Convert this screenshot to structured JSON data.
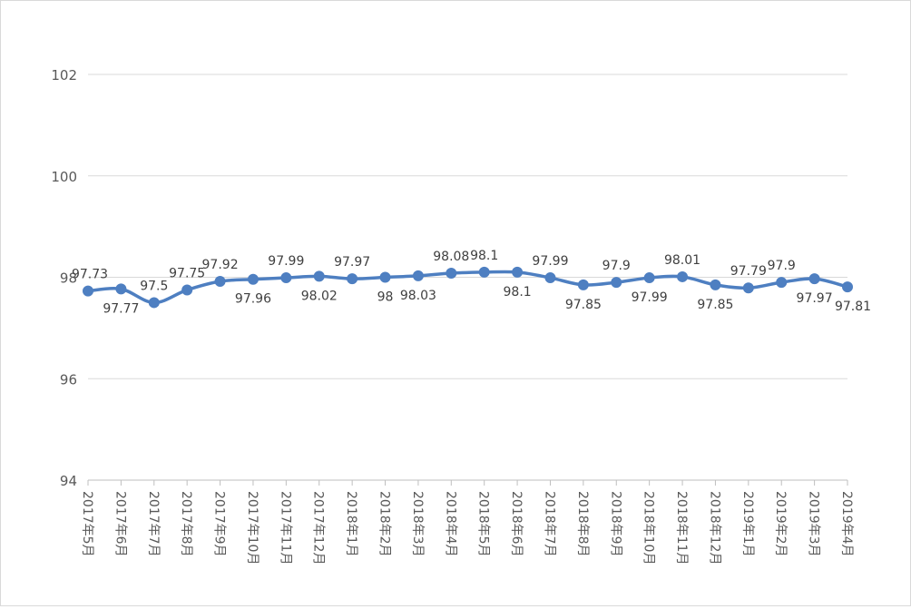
{
  "chart_data": {
    "type": "line",
    "title": "",
    "xlabel": "",
    "ylabel": "",
    "ylim": [
      94,
      102
    ],
    "yticks": [
      "94",
      "96",
      "98",
      "100",
      "102"
    ],
    "grid": true,
    "legend": "none",
    "line_color": "#4e7fc1",
    "categories": [
      "2017年5月",
      "2017年6月",
      "2017年7月",
      "2017年8月",
      "2017年9月",
      "2017年10月",
      "2017年11月",
      "2017年12月",
      "2018年1月",
      "2018年2月",
      "2018年3月",
      "2018年4月",
      "2018年5月",
      "2018年6月",
      "2018年7月",
      "2018年8月",
      "2018年9月",
      "2018年10月",
      "2018年11月",
      "2018年12月",
      "2019年1月",
      "2019年2月",
      "2019年3月",
      "2019年4月"
    ],
    "series": [
      {
        "values": [
          97.73,
          97.77,
          97.5,
          97.75,
          97.92,
          97.96,
          97.99,
          98.02,
          97.97,
          98,
          98.03,
          98.08,
          98.1,
          98.1,
          97.99,
          97.85,
          97.9,
          97.99,
          98.01,
          97.85,
          97.79,
          97.9,
          97.97,
          97.81
        ],
        "labels": [
          "97.73",
          "97.77",
          "97.5",
          "97.75",
          "97.92",
          "97.96",
          "97.99",
          "98.02",
          "97.97",
          "98",
          "98.03",
          "98.08",
          "98.1",
          "98.1",
          "97.99",
          "97.85",
          "97.9",
          "97.99",
          "98.01",
          "97.85",
          "97.79",
          "97.9",
          "97.97",
          "97.81"
        ]
      }
    ]
  }
}
